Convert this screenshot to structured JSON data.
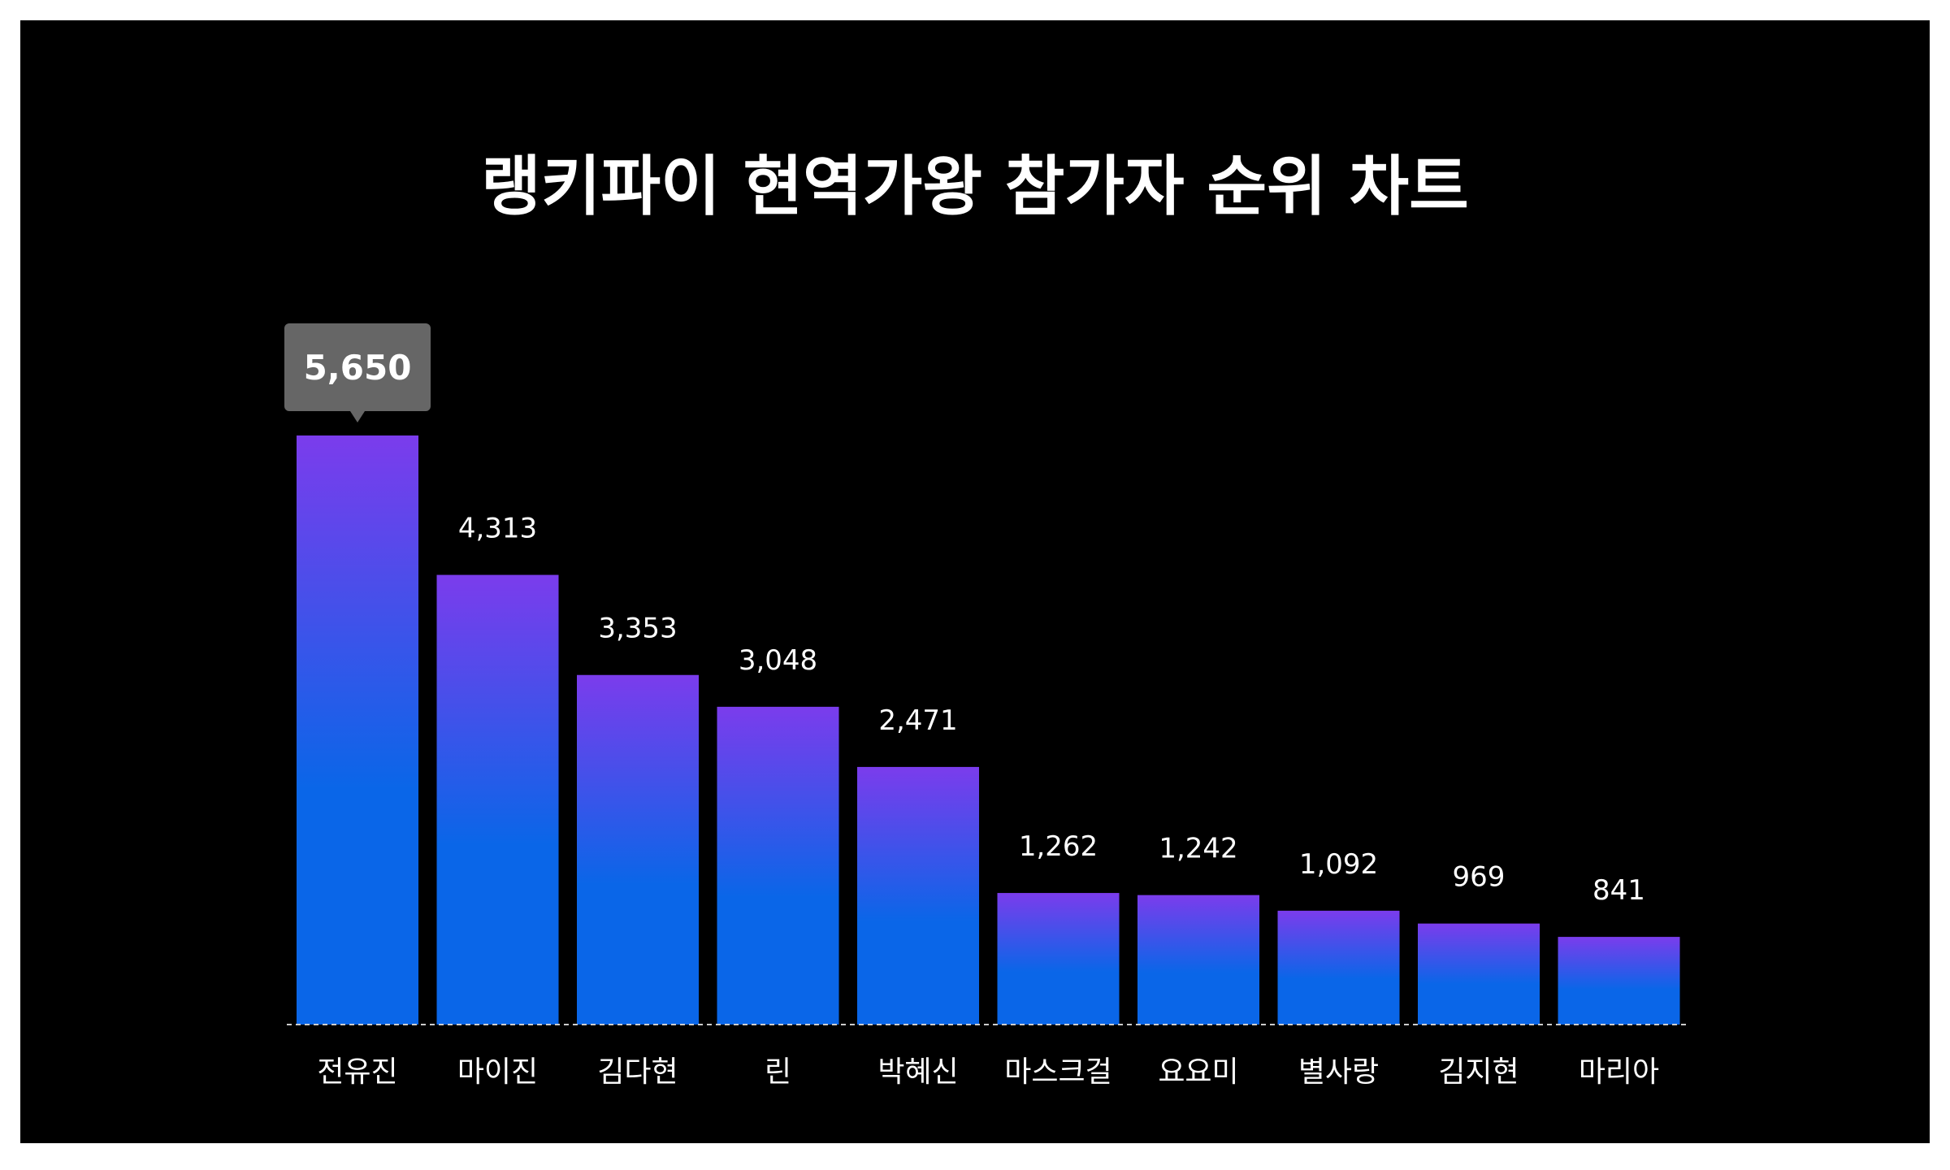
{
  "chart_data": {
    "type": "bar",
    "title": "랭키파이 현역가왕 참가자 순위 차트",
    "xlabel": "",
    "ylabel": "",
    "categories": [
      "전유진",
      "마이진",
      "김다현",
      "린",
      "박혜신",
      "마스크걸",
      "요요미",
      "별사랑",
      "김지현",
      "마리아"
    ],
    "values": [
      5650,
      4313,
      3353,
      3048,
      2471,
      1262,
      1242,
      1092,
      969,
      841
    ],
    "value_labels": [
      "5,650",
      "4,313",
      "3,353",
      "3,048",
      "2,471",
      "1,262",
      "1,242",
      "1,092",
      "969",
      "841"
    ],
    "ylim": [
      0,
      5650
    ],
    "grid": false,
    "highlight_index": 0,
    "colors": {
      "background": "#000000",
      "bar_top": "#7b3cec",
      "bar_bottom": "#0a66e8",
      "tooltip": "#666666",
      "text": "#ffffff",
      "baseline": "#cccccc"
    }
  }
}
